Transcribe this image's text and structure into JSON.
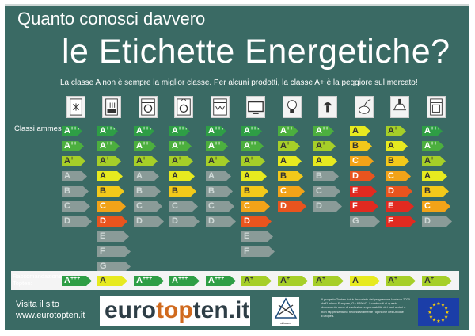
{
  "title_line1": "Quanto conosci davvero",
  "title_line2": "le Etichette Energetiche?",
  "subtitle": "La classe A non è sempre la miglior classe. Per alcuni prodotti, la classe A+ è la peggiore sul mercato!",
  "classes_label": "Classi ammesse",
  "recommendation_label": "Raccomandazione Topten:",
  "visit_line1": "Visita il sito",
  "visit_url": "www.eurotopten.it",
  "logo_text": {
    "euro": "euro",
    "top": "top",
    "ten": "ten.it"
  },
  "alliance_text": "alliance",
  "disclaimer": "Il progetto Topten Act è finanziato dal programma Horizon 2020 dell'Unione Europea, GA 649647. I contenuti di questo documento sono di esclusiva responsabilità dei suoi autori e non rappresentano necessariamente l'opinione dell'Unione Europea.",
  "colors": {
    "background": "#3a6a64",
    "active": {
      "A+++": "#2e9e45",
      "A++": "#4caf3e",
      "A+": "#a6cf28",
      "A": "#e7ea1f",
      "B": "#f3c91a",
      "C": "#f2a318",
      "D": "#e9541e",
      "E": "#e12a20",
      "F": "#e12a20",
      "G": "#e12a20"
    },
    "inactive": "#8a9b98",
    "inactive_text": "#cfd9d7"
  },
  "appliances": [
    {
      "name": "fridge-icon",
      "classes": [
        {
          "label": "A+++",
          "active": true
        },
        {
          "label": "A++",
          "active": true
        },
        {
          "label": "A+",
          "active": true
        },
        {
          "label": "A",
          "active": false
        },
        {
          "label": "B",
          "active": false
        },
        {
          "label": "C",
          "active": false
        },
        {
          "label": "D",
          "active": false
        }
      ],
      "rec": "A+++"
    },
    {
      "name": "dishwasher-icon",
      "classes": [
        {
          "label": "A+++",
          "active": true
        },
        {
          "label": "A++",
          "active": true
        },
        {
          "label": "A+",
          "active": true
        },
        {
          "label": "A",
          "active": true
        },
        {
          "label": "B",
          "active": true
        },
        {
          "label": "C",
          "active": true
        },
        {
          "label": "D",
          "active": true
        },
        {
          "label": "E",
          "active": false
        },
        {
          "label": "F",
          "active": false
        },
        {
          "label": "G",
          "active": false
        }
      ],
      "rec": "A"
    },
    {
      "name": "washing-machine-icon",
      "classes": [
        {
          "label": "A+++",
          "active": true
        },
        {
          "label": "A++",
          "active": true
        },
        {
          "label": "A+",
          "active": true
        },
        {
          "label": "A",
          "active": false
        },
        {
          "label": "B",
          "active": false
        },
        {
          "label": "C",
          "active": false
        },
        {
          "label": "D",
          "active": false
        }
      ],
      "rec": "A+++"
    },
    {
      "name": "washer-dryer-icon",
      "classes": [
        {
          "label": "A+++",
          "active": true
        },
        {
          "label": "A++",
          "active": true
        },
        {
          "label": "A+",
          "active": true
        },
        {
          "label": "A",
          "active": true
        },
        {
          "label": "B",
          "active": true
        },
        {
          "label": "C",
          "active": false
        },
        {
          "label": "D",
          "active": false
        }
      ],
      "rec": "A+++"
    },
    {
      "name": "dryer-icon",
      "classes": [
        {
          "label": "A+++",
          "active": true
        },
        {
          "label": "A++",
          "active": true
        },
        {
          "label": "A+",
          "active": true
        },
        {
          "label": "A",
          "active": false
        },
        {
          "label": "B",
          "active": false
        },
        {
          "label": "C",
          "active": false
        },
        {
          "label": "D",
          "active": false
        }
      ],
      "rec": "A+++"
    },
    {
      "name": "television-icon",
      "classes": [
        {
          "label": "A+++",
          "active": true
        },
        {
          "label": "A++",
          "active": true
        },
        {
          "label": "A+",
          "active": true
        },
        {
          "label": "A",
          "active": true
        },
        {
          "label": "B",
          "active": true
        },
        {
          "label": "C",
          "active": true
        },
        {
          "label": "D",
          "active": true
        },
        {
          "label": "E",
          "active": false
        },
        {
          "label": "F",
          "active": false
        }
      ],
      "rec": "A+"
    },
    {
      "name": "bulb-icon",
      "classes": [
        {
          "label": "A++",
          "active": true
        },
        {
          "label": "A+",
          "active": true
        },
        {
          "label": "A",
          "active": true
        },
        {
          "label": "B",
          "active": true
        },
        {
          "label": "C",
          "active": true
        },
        {
          "label": "D",
          "active": true
        }
      ],
      "rec": "A+"
    },
    {
      "name": "led-lamp-icon",
      "classes": [
        {
          "label": "A++",
          "active": true
        },
        {
          "label": "A+",
          "active": true
        },
        {
          "label": "A",
          "active": true
        },
        {
          "label": "B",
          "active": false
        },
        {
          "label": "C",
          "active": false
        },
        {
          "label": "D",
          "active": false
        }
      ],
      "rec": "A+"
    },
    {
      "name": "vacuum-cleaner-icon",
      "classes": [
        {
          "label": "A",
          "active": true
        },
        {
          "label": "B",
          "active": true
        },
        {
          "label": "C",
          "active": true
        },
        {
          "label": "D",
          "active": true
        },
        {
          "label": "E",
          "active": true
        },
        {
          "label": "F",
          "active": true
        },
        {
          "label": "G",
          "active": false
        }
      ],
      "rec": "A"
    },
    {
      "name": "range-hood-icon",
      "classes": [
        {
          "label": "A+",
          "active": true
        },
        {
          "label": "A",
          "active": true
        },
        {
          "label": "B",
          "active": true
        },
        {
          "label": "C",
          "active": true
        },
        {
          "label": "D",
          "active": true
        },
        {
          "label": "E",
          "active": true
        },
        {
          "label": "F",
          "active": true
        }
      ],
      "rec": "A+"
    },
    {
      "name": "oven-icon",
      "classes": [
        {
          "label": "A+++",
          "active": true
        },
        {
          "label": "A++",
          "active": true
        },
        {
          "label": "A+",
          "active": true
        },
        {
          "label": "A",
          "active": true
        },
        {
          "label": "B",
          "active": true
        },
        {
          "label": "C",
          "active": true
        },
        {
          "label": "D",
          "active": false
        }
      ],
      "rec": "A+"
    }
  ]
}
